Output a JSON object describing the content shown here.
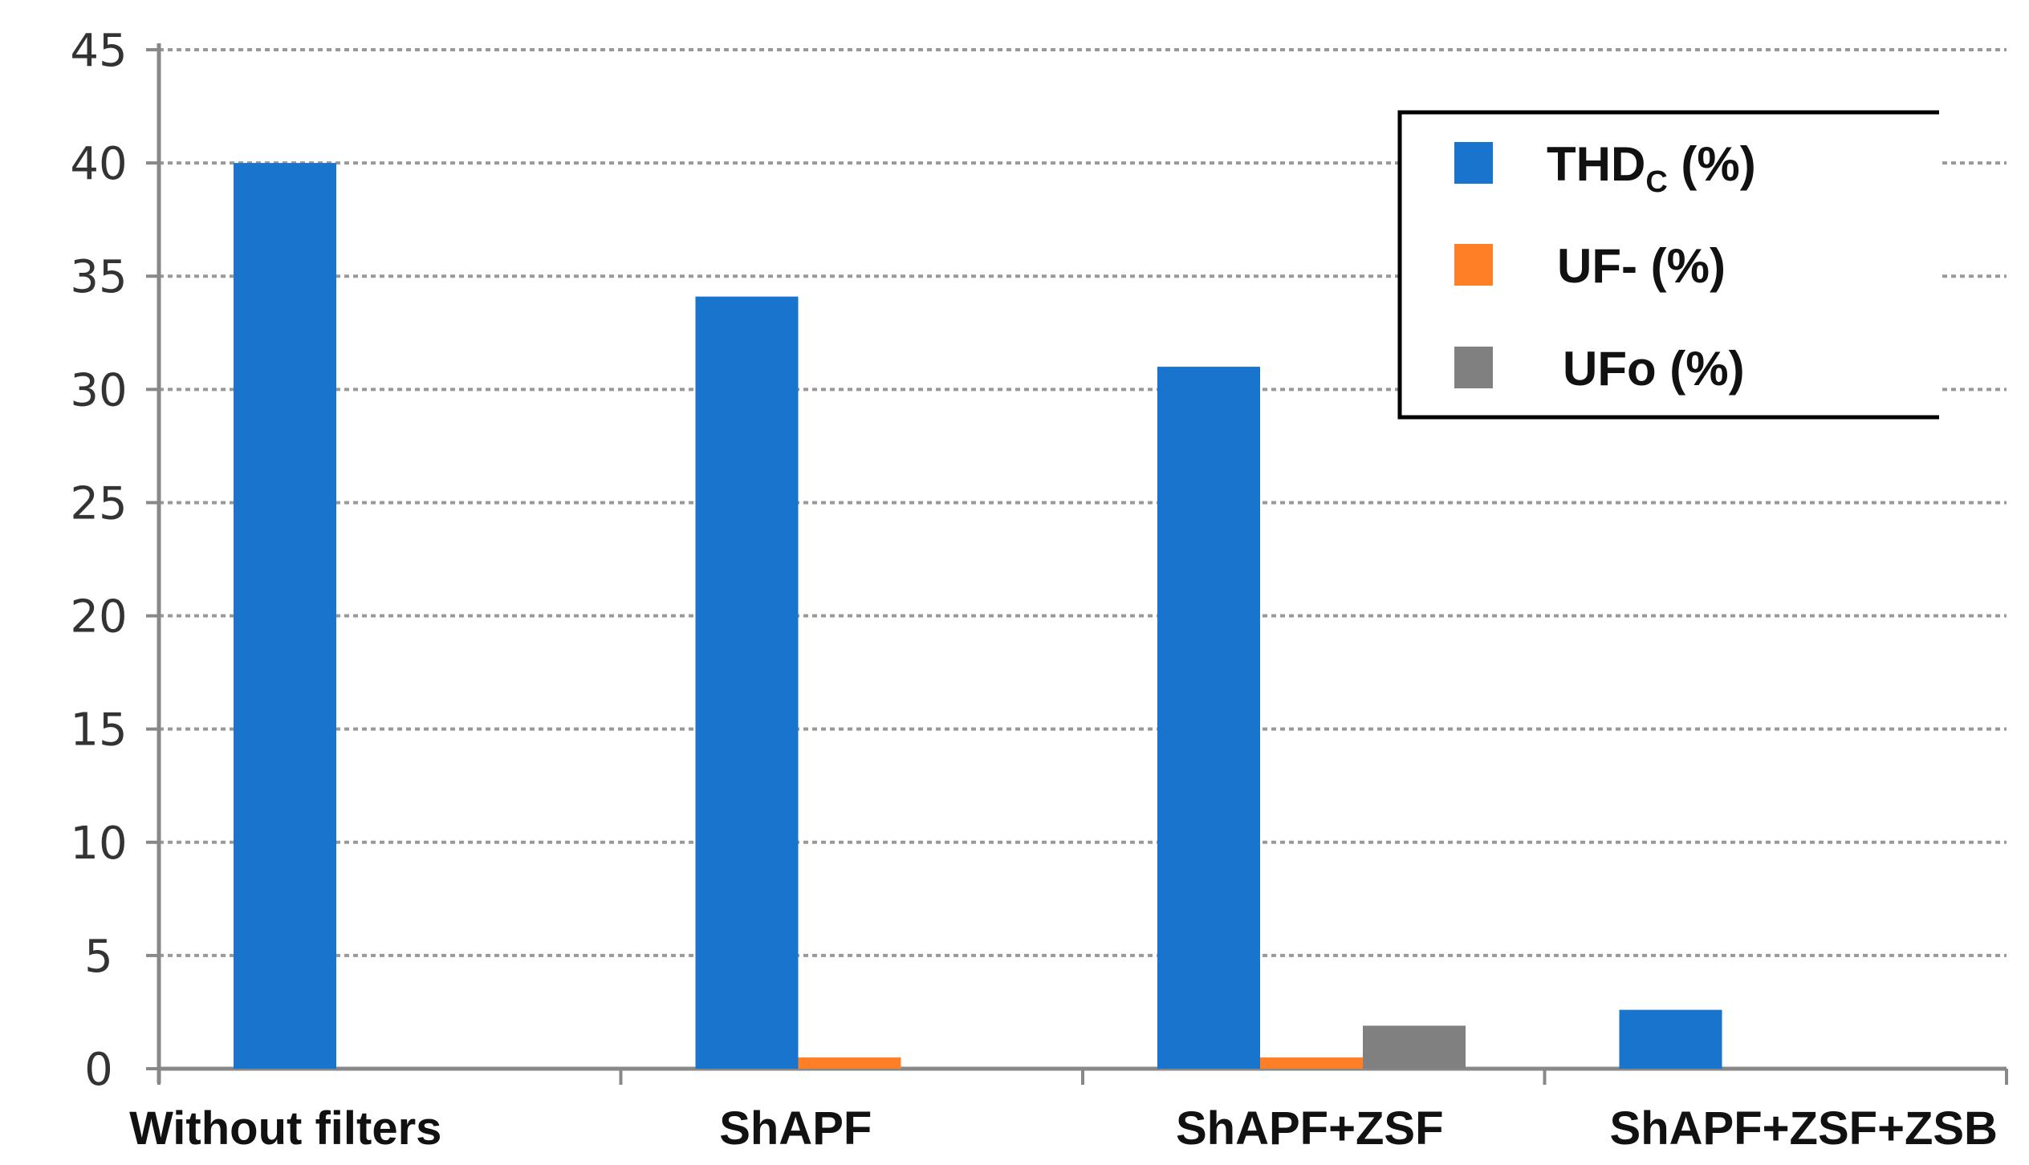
{
  "chart_data": {
    "type": "bar",
    "title": "",
    "xlabel": "",
    "ylabel": "",
    "ylim": [
      0,
      45
    ],
    "yticks": [
      0,
      5,
      10,
      15,
      20,
      25,
      30,
      35,
      40,
      45
    ],
    "grid": true,
    "legend_position": "top-right",
    "categories": [
      "Without filters",
      "ShAPF",
      "ShAPF+ZSF",
      "ShAPF+ZSF+ZSB"
    ],
    "series": [
      {
        "name": "THD",
        "name_sub": "C",
        "name_suffix": " (%)",
        "color": "#1874CD",
        "values": [
          40,
          34.1,
          31,
          2.6
        ]
      },
      {
        "name": "UF- (%)",
        "name_sub": "",
        "name_suffix": "",
        "color": "#FF7F27",
        "values": [
          0,
          0.5,
          0.5,
          0
        ]
      },
      {
        "name": "UFo (%)",
        "name_sub": "",
        "name_suffix": "",
        "color": "#808080",
        "values": [
          0,
          0,
          1.9,
          0
        ]
      }
    ]
  }
}
